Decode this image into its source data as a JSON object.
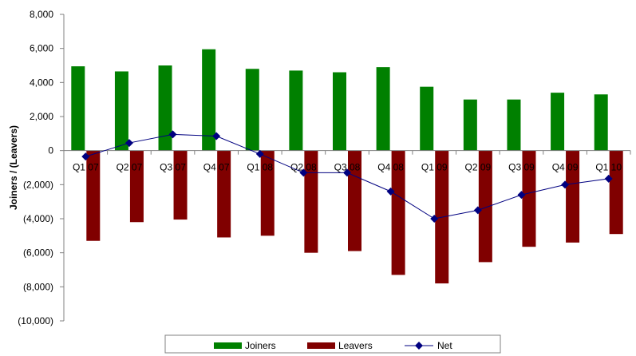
{
  "chart_data": {
    "type": "bar",
    "ylabel": "Joiners  / (Leavers)",
    "ylim": [
      -10000,
      8000
    ],
    "yticks": [
      8000,
      6000,
      4000,
      2000,
      0,
      -2000,
      -4000,
      -6000,
      -8000,
      -10000
    ],
    "ytick_labels": [
      "8,000",
      "6,000",
      "4,000",
      "2,000",
      "0",
      "(2,000)",
      "(4,000)",
      "(6,000)",
      "(8,000)",
      "(10,000)"
    ],
    "categories": [
      "Q1 07",
      "Q2 07",
      "Q3 07",
      "Q4 07",
      "Q1 08",
      "Q2 08",
      "Q3 08",
      "Q4 08",
      "Q1 09",
      "Q2 09",
      "Q3 09",
      "Q4 09",
      "Q1 10"
    ],
    "series": [
      {
        "name": "Joiners",
        "type": "bar",
        "color": "#008000",
        "values": [
          4950,
          4650,
          5000,
          5950,
          4800,
          4700,
          4600,
          4900,
          3750,
          3000,
          3000,
          3400,
          3300
        ]
      },
      {
        "name": "Leavers",
        "type": "bar",
        "color": "#800000",
        "values": [
          -5300,
          -4200,
          -4050,
          -5100,
          -5000,
          -6000,
          -5900,
          -7300,
          -7800,
          -6550,
          -5650,
          -5400,
          -4900
        ]
      },
      {
        "name": "Net",
        "type": "line",
        "color": "#000080",
        "values": [
          -350,
          450,
          950,
          850,
          -200,
          -1300,
          -1300,
          -2400,
          -4000,
          -3500,
          -2600,
          -2000,
          -1650
        ]
      }
    ],
    "grid": false,
    "legend_position": "bottom"
  }
}
